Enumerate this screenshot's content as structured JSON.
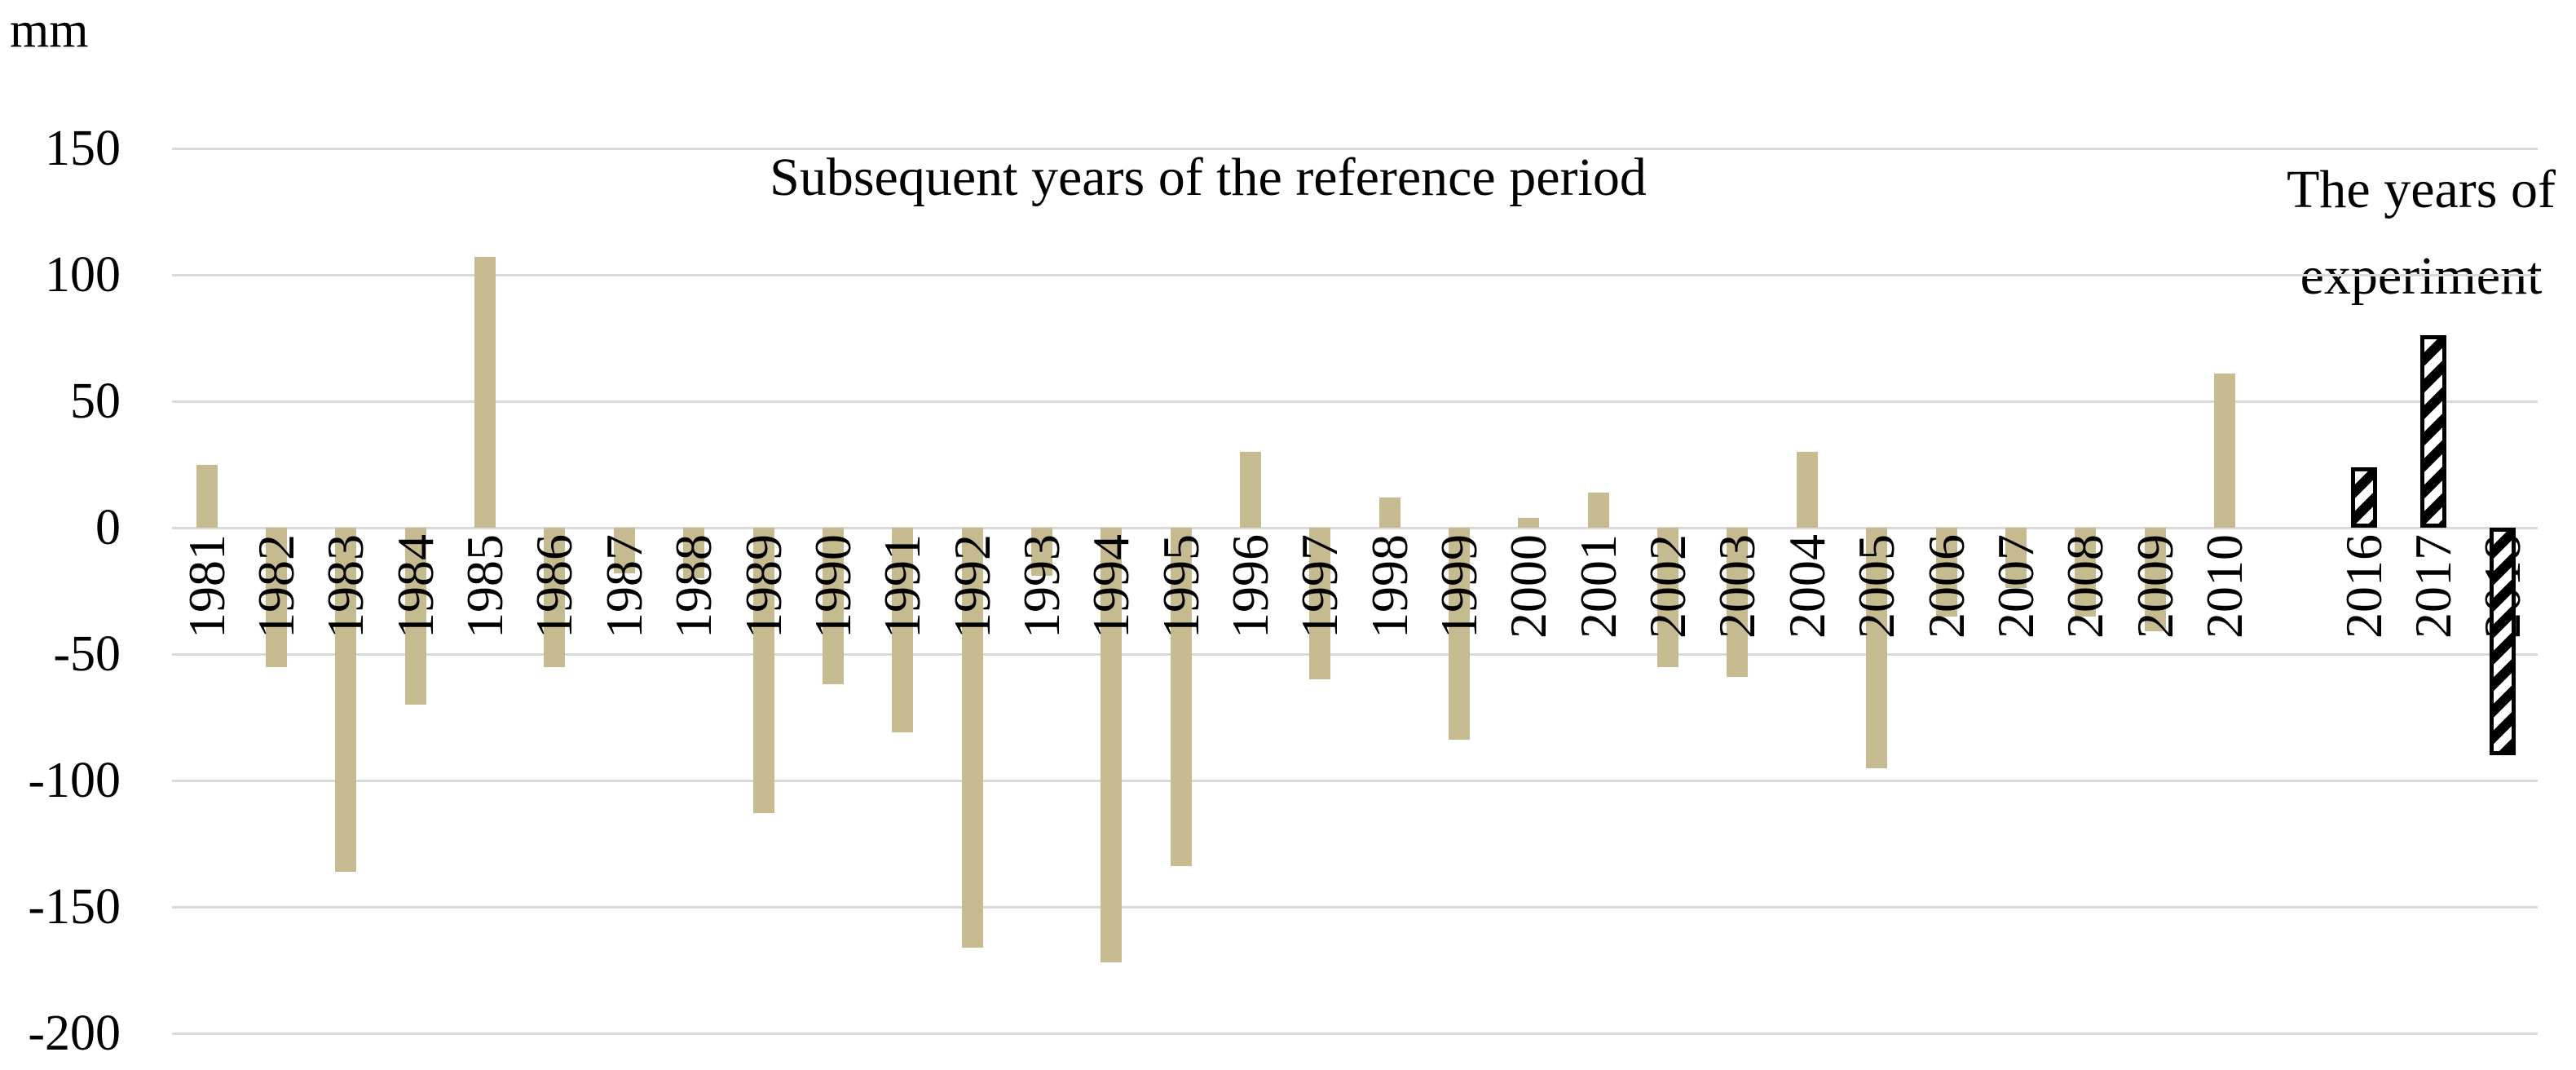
{
  "chart_data": {
    "type": "bar",
    "unit_label": "mm",
    "title_reference": "Subsequent years of the reference period",
    "title_experiment_lines": [
      "The years of",
      "experiment"
    ],
    "y_ticks": [
      150,
      100,
      50,
      0,
      -50,
      -100,
      -150,
      -200
    ],
    "ylim": [
      -200,
      150
    ],
    "grid": true,
    "legend_position": "none",
    "series": [
      {
        "name": "Subsequent years of the reference period",
        "style": "solid",
        "categories": [
          "1981",
          "1982",
          "1983",
          "1984",
          "1985",
          "1986",
          "1987",
          "1988",
          "1989",
          "1990",
          "1991",
          "1992",
          "1993",
          "1994",
          "1995",
          "1996",
          "1997",
          "1998",
          "1999",
          "2000",
          "2001",
          "2002",
          "2003",
          "2004",
          "2005",
          "2006",
          "2007",
          "2008",
          "2009",
          "2010"
        ],
        "values": [
          25,
          -55,
          -136,
          -70,
          107,
          -55,
          -18,
          -20,
          -113,
          -62,
          -81,
          -166,
          -19,
          -172,
          -134,
          30,
          -60,
          12,
          -84,
          4,
          14,
          -55,
          -59,
          30,
          -95,
          -35,
          -24,
          -35,
          -41,
          61
        ]
      },
      {
        "name": "The years of experiment",
        "style": "hatched",
        "categories": [
          "2016",
          "2017",
          "2018"
        ],
        "values": [
          24,
          76,
          -90
        ]
      }
    ],
    "colors": {
      "bar_fill": "#c6ba90",
      "hatch_stroke": "#000000",
      "gridline": "#d9d9d9",
      "text": "#000000",
      "background": "#ffffff"
    }
  }
}
